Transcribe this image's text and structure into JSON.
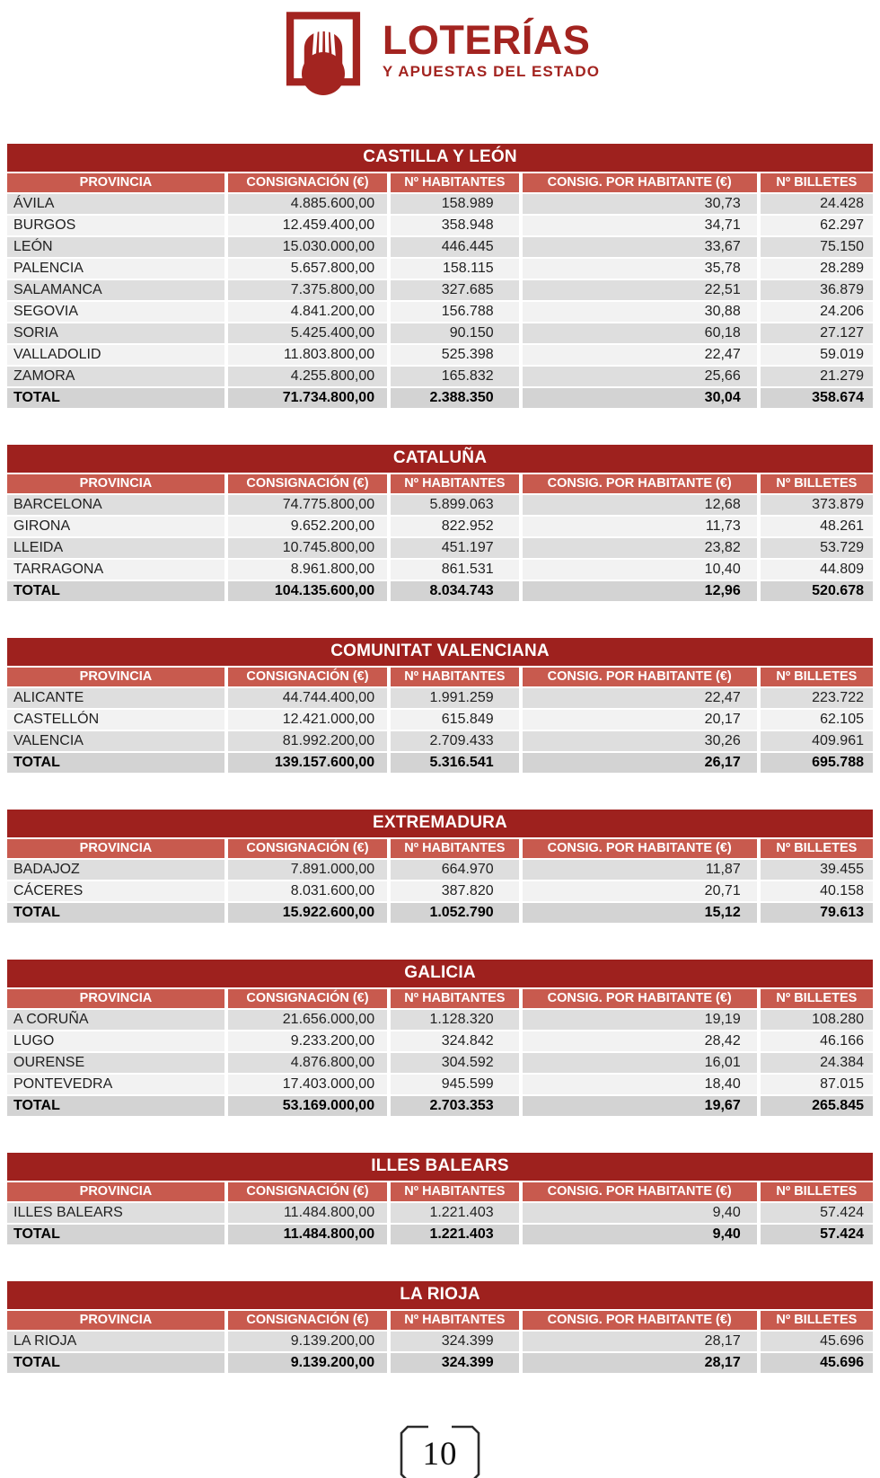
{
  "logo": {
    "title": "LOTERÍAS",
    "subtitle": "Y APUESTAS DEL ESTADO"
  },
  "columns": [
    "PROVINCIA",
    "CONSIGNACIÓN (€)",
    "Nº HABITANTES",
    "CONSIG. POR HABITANTE (€)",
    "Nº BILLETES"
  ],
  "tables": [
    {
      "region": "CASTILLA Y LEÓN",
      "rows": [
        [
          "ÁVILA",
          "4.885.600,00",
          "158.989",
          "30,73",
          "24.428"
        ],
        [
          "BURGOS",
          "12.459.400,00",
          "358.948",
          "34,71",
          "62.297"
        ],
        [
          "LEÓN",
          "15.030.000,00",
          "446.445",
          "33,67",
          "75.150"
        ],
        [
          "PALENCIA",
          "5.657.800,00",
          "158.115",
          "35,78",
          "28.289"
        ],
        [
          "SALAMANCA",
          "7.375.800,00",
          "327.685",
          "22,51",
          "36.879"
        ],
        [
          "SEGOVIA",
          "4.841.200,00",
          "156.788",
          "30,88",
          "24.206"
        ],
        [
          "SORIA",
          "5.425.400,00",
          "90.150",
          "60,18",
          "27.127"
        ],
        [
          "VALLADOLID",
          "11.803.800,00",
          "525.398",
          "22,47",
          "59.019"
        ],
        [
          "ZAMORA",
          "4.255.800,00",
          "165.832",
          "25,66",
          "21.279"
        ]
      ],
      "total": [
        "TOTAL",
        "71.734.800,00",
        "2.388.350",
        "30,04",
        "358.674"
      ]
    },
    {
      "region": "CATALUÑA",
      "rows": [
        [
          "BARCELONA",
          "74.775.800,00",
          "5.899.063",
          "12,68",
          "373.879"
        ],
        [
          "GIRONA",
          "9.652.200,00",
          "822.952",
          "11,73",
          "48.261"
        ],
        [
          "LLEIDA",
          "10.745.800,00",
          "451.197",
          "23,82",
          "53.729"
        ],
        [
          "TARRAGONA",
          "8.961.800,00",
          "861.531",
          "10,40",
          "44.809"
        ]
      ],
      "total": [
        "TOTAL",
        "104.135.600,00",
        "8.034.743",
        "12,96",
        "520.678"
      ]
    },
    {
      "region": "COMUNITAT VALENCIANA",
      "rows": [
        [
          "ALICANTE",
          "44.744.400,00",
          "1.991.259",
          "22,47",
          "223.722"
        ],
        [
          "CASTELLÓN",
          "12.421.000,00",
          "615.849",
          "20,17",
          "62.105"
        ],
        [
          "VALENCIA",
          "81.992.200,00",
          "2.709.433",
          "30,26",
          "409.961"
        ]
      ],
      "total": [
        "TOTAL",
        "139.157.600,00",
        "5.316.541",
        "26,17",
        "695.788"
      ]
    },
    {
      "region": "EXTREMADURA",
      "rows": [
        [
          "BADAJOZ",
          "7.891.000,00",
          "664.970",
          "11,87",
          "39.455"
        ],
        [
          "CÁCERES",
          "8.031.600,00",
          "387.820",
          "20,71",
          "40.158"
        ]
      ],
      "total": [
        "TOTAL",
        "15.922.600,00",
        "1.052.790",
        "15,12",
        "79.613"
      ]
    },
    {
      "region": "GALICIA",
      "rows": [
        [
          "A CORUÑA",
          "21.656.000,00",
          "1.128.320",
          "19,19",
          "108.280"
        ],
        [
          "LUGO",
          "9.233.200,00",
          "324.842",
          "28,42",
          "46.166"
        ],
        [
          "OURENSE",
          "4.876.800,00",
          "304.592",
          "16,01",
          "24.384"
        ],
        [
          "PONTEVEDRA",
          "17.403.000,00",
          "945.599",
          "18,40",
          "87.015"
        ]
      ],
      "total": [
        "TOTAL",
        "53.169.000,00",
        "2.703.353",
        "19,67",
        "265.845"
      ]
    },
    {
      "region": "ILLES BALEARS",
      "rows": [
        [
          "ILLES BALEARS",
          "11.484.800,00",
          "1.221.403",
          "9,40",
          "57.424"
        ]
      ],
      "total": [
        "TOTAL",
        "11.484.800,00",
        "1.221.403",
        "9,40",
        "57.424"
      ]
    },
    {
      "region": "LA RIOJA",
      "rows": [
        [
          "LA RIOJA",
          "9.139.200,00",
          "324.399",
          "28,17",
          "45.696"
        ]
      ],
      "total": [
        "TOTAL",
        "9.139.200,00",
        "324.399",
        "28,17",
        "45.696"
      ]
    }
  ],
  "page_number": "10",
  "colors": {
    "title_bar": "#9e211e",
    "header_bar": "#c85a4e",
    "row_gray": "#dedede",
    "row_light": "#f2f2f2",
    "row_total": "#d3d3d3",
    "logo_red": "#a32420",
    "body_text": "#1f1f1f"
  }
}
